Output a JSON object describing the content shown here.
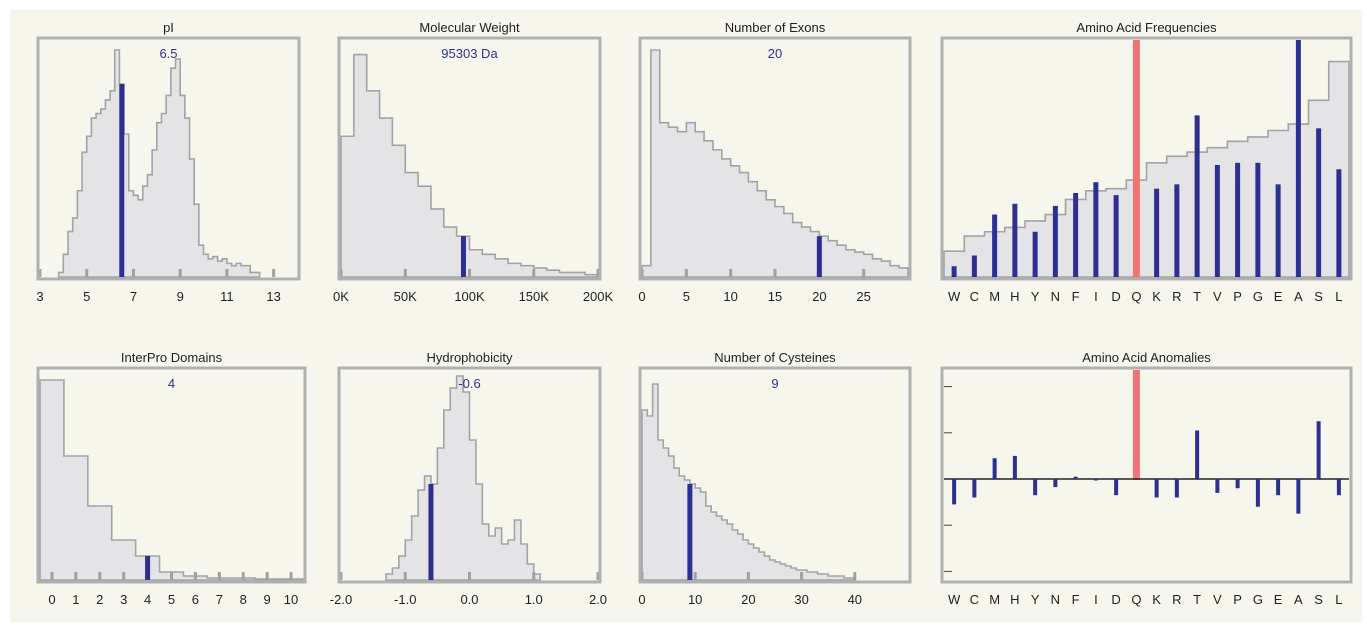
{
  "chart_data": [
    {
      "type": "histogram",
      "title": "pI",
      "value_label": "6.5",
      "marker": 6.5,
      "xlim": [
        3,
        14
      ],
      "xticks": [
        "3",
        "5",
        "7",
        "9",
        "11",
        "13"
      ],
      "xtick_values": [
        3,
        5,
        7,
        9,
        11,
        13
      ],
      "ylim": [
        0,
        100
      ],
      "bin_start": 3.8,
      "bin_width": 0.2,
      "values": [
        2,
        10,
        20,
        26,
        38,
        55,
        62,
        70,
        72,
        74,
        78,
        82,
        100,
        85,
        63,
        38,
        36,
        34,
        40,
        45,
        56,
        68,
        72,
        80,
        92,
        96,
        80,
        70,
        52,
        32,
        14,
        10,
        8,
        9,
        7,
        8,
        6,
        5,
        6,
        5,
        5,
        2,
        2
      ]
    },
    {
      "type": "histogram",
      "title": "Molecular Weight",
      "value_label": "95303 Da",
      "marker": 95303,
      "xlim": [
        0,
        200000
      ],
      "xticks": [
        "0K",
        "50K",
        "100K",
        "150K",
        "200K"
      ],
      "xtick_values": [
        0,
        50000,
        100000,
        150000,
        200000
      ],
      "ylim": [
        0,
        100
      ],
      "bin_start": 0,
      "bin_width": 10000,
      "values": [
        62,
        98,
        82,
        70,
        58,
        46,
        40,
        30,
        22,
        18,
        12,
        10,
        8,
        6,
        5,
        4,
        3,
        2,
        2,
        1
      ]
    },
    {
      "type": "histogram",
      "title": "Number of Exons",
      "value_label": "20",
      "marker": 20,
      "xlim": [
        0,
        30
      ],
      "xticks": [
        "0",
        "5",
        "10",
        "15",
        "20",
        "25"
      ],
      "xtick_values": [
        0,
        5,
        10,
        15,
        20,
        25
      ],
      "ylim": [
        0,
        100
      ],
      "bin_start": 0,
      "bin_width": 1,
      "values": [
        5,
        100,
        68,
        66,
        64,
        68,
        64,
        60,
        56,
        52,
        49,
        46,
        42,
        38,
        34,
        31,
        28,
        24,
        22,
        20,
        18,
        16,
        14,
        12,
        11,
        10,
        8,
        7,
        5,
        4
      ]
    },
    {
      "type": "bar+step",
      "title": "Amino Acid Frequencies",
      "categories": [
        "W",
        "C",
        "M",
        "H",
        "Y",
        "N",
        "F",
        "I",
        "D",
        "Q",
        "K",
        "R",
        "T",
        "V",
        "P",
        "G",
        "E",
        "A",
        "S",
        "L"
      ],
      "highlight": "Q",
      "ylim": [
        0,
        11
      ],
      "values": [
        0.5,
        1.0,
        2.9,
        3.4,
        2.1,
        3.3,
        3.9,
        4.4,
        3.8,
        4.7,
        4.1,
        4.3,
        7.5,
        5.2,
        5.3,
        5.3,
        4.3,
        11.0,
        6.9,
        5.0
      ],
      "step_values": [
        1.2,
        1.9,
        2.1,
        2.3,
        2.6,
        2.9,
        3.6,
        4.0,
        4.1,
        4.5,
        5.3,
        5.6,
        5.8,
        6.0,
        6.3,
        6.5,
        6.8,
        7.1,
        8.2,
        10.0
      ],
      "max_label": "L"
    },
    {
      "type": "histogram",
      "title": "InterPro Domains",
      "value_label": "4",
      "marker": 4,
      "xlim": [
        -0.5,
        10.5
      ],
      "xticks": [
        "0",
        "1",
        "2",
        "3",
        "4",
        "5",
        "6",
        "7",
        "8",
        "9",
        "10"
      ],
      "xtick_values": [
        0,
        1,
        2,
        3,
        4,
        5,
        6,
        7,
        8,
        9,
        10
      ],
      "ylim": [
        0,
        100
      ],
      "bin_start": -0.5,
      "bin_width": 1,
      "values": [
        100,
        62,
        37,
        20,
        12,
        4,
        2,
        1,
        1,
        0.5,
        0.5
      ]
    },
    {
      "type": "histogram",
      "title": "Hydrophobicity",
      "value_label": "-0.6",
      "marker": -0.6,
      "xlim": [
        -2.0,
        2.0
      ],
      "xticks": [
        "-2.0",
        "-1.0",
        "0.0",
        "1.0",
        "2.0"
      ],
      "xtick_values": [
        -2.0,
        -1.0,
        0.0,
        1.0,
        2.0
      ],
      "ylim": [
        0,
        100
      ],
      "bin_start": -1.3,
      "bin_width": 0.1,
      "values": [
        3,
        6,
        12,
        20,
        32,
        45,
        52,
        48,
        66,
        85,
        96,
        102,
        94,
        70,
        48,
        28,
        22,
        26,
        18,
        20,
        30,
        18,
        8,
        3
      ]
    },
    {
      "type": "histogram",
      "title": "Number of Cysteines",
      "value_label": "9",
      "marker": 9,
      "xlim": [
        0,
        50
      ],
      "xticks": [
        "0",
        "10",
        "20",
        "30",
        "40"
      ],
      "xtick_values": [
        0,
        10,
        20,
        30,
        40
      ],
      "ylim": [
        0,
        100
      ],
      "bin_start": 0,
      "bin_width": 1,
      "values": [
        85,
        82,
        98,
        70,
        66,
        62,
        56,
        52,
        50,
        48,
        46,
        44,
        37,
        34,
        32,
        30,
        28,
        25,
        23,
        20,
        18,
        16,
        14,
        12,
        10,
        9,
        8,
        7,
        6,
        5,
        5,
        4,
        4,
        3,
        3,
        2,
        2,
        2,
        1,
        1
      ]
    },
    {
      "type": "bar",
      "title": "Amino Acid Anomalies",
      "categories": [
        "W",
        "C",
        "M",
        "H",
        "Y",
        "N",
        "F",
        "I",
        "D",
        "Q",
        "K",
        "R",
        "T",
        "V",
        "P",
        "G",
        "E",
        "A",
        "S",
        "L"
      ],
      "highlight": "Q",
      "ylim": [
        -5,
        5
      ],
      "values": [
        -1.1,
        -0.8,
        0.9,
        1.0,
        -0.7,
        -0.35,
        0.1,
        0,
        -0.7,
        0,
        -0.8,
        -0.8,
        2.1,
        -0.6,
        -0.4,
        -1.2,
        -0.7,
        -1.5,
        2.5,
        -0.7
      ]
    }
  ]
}
